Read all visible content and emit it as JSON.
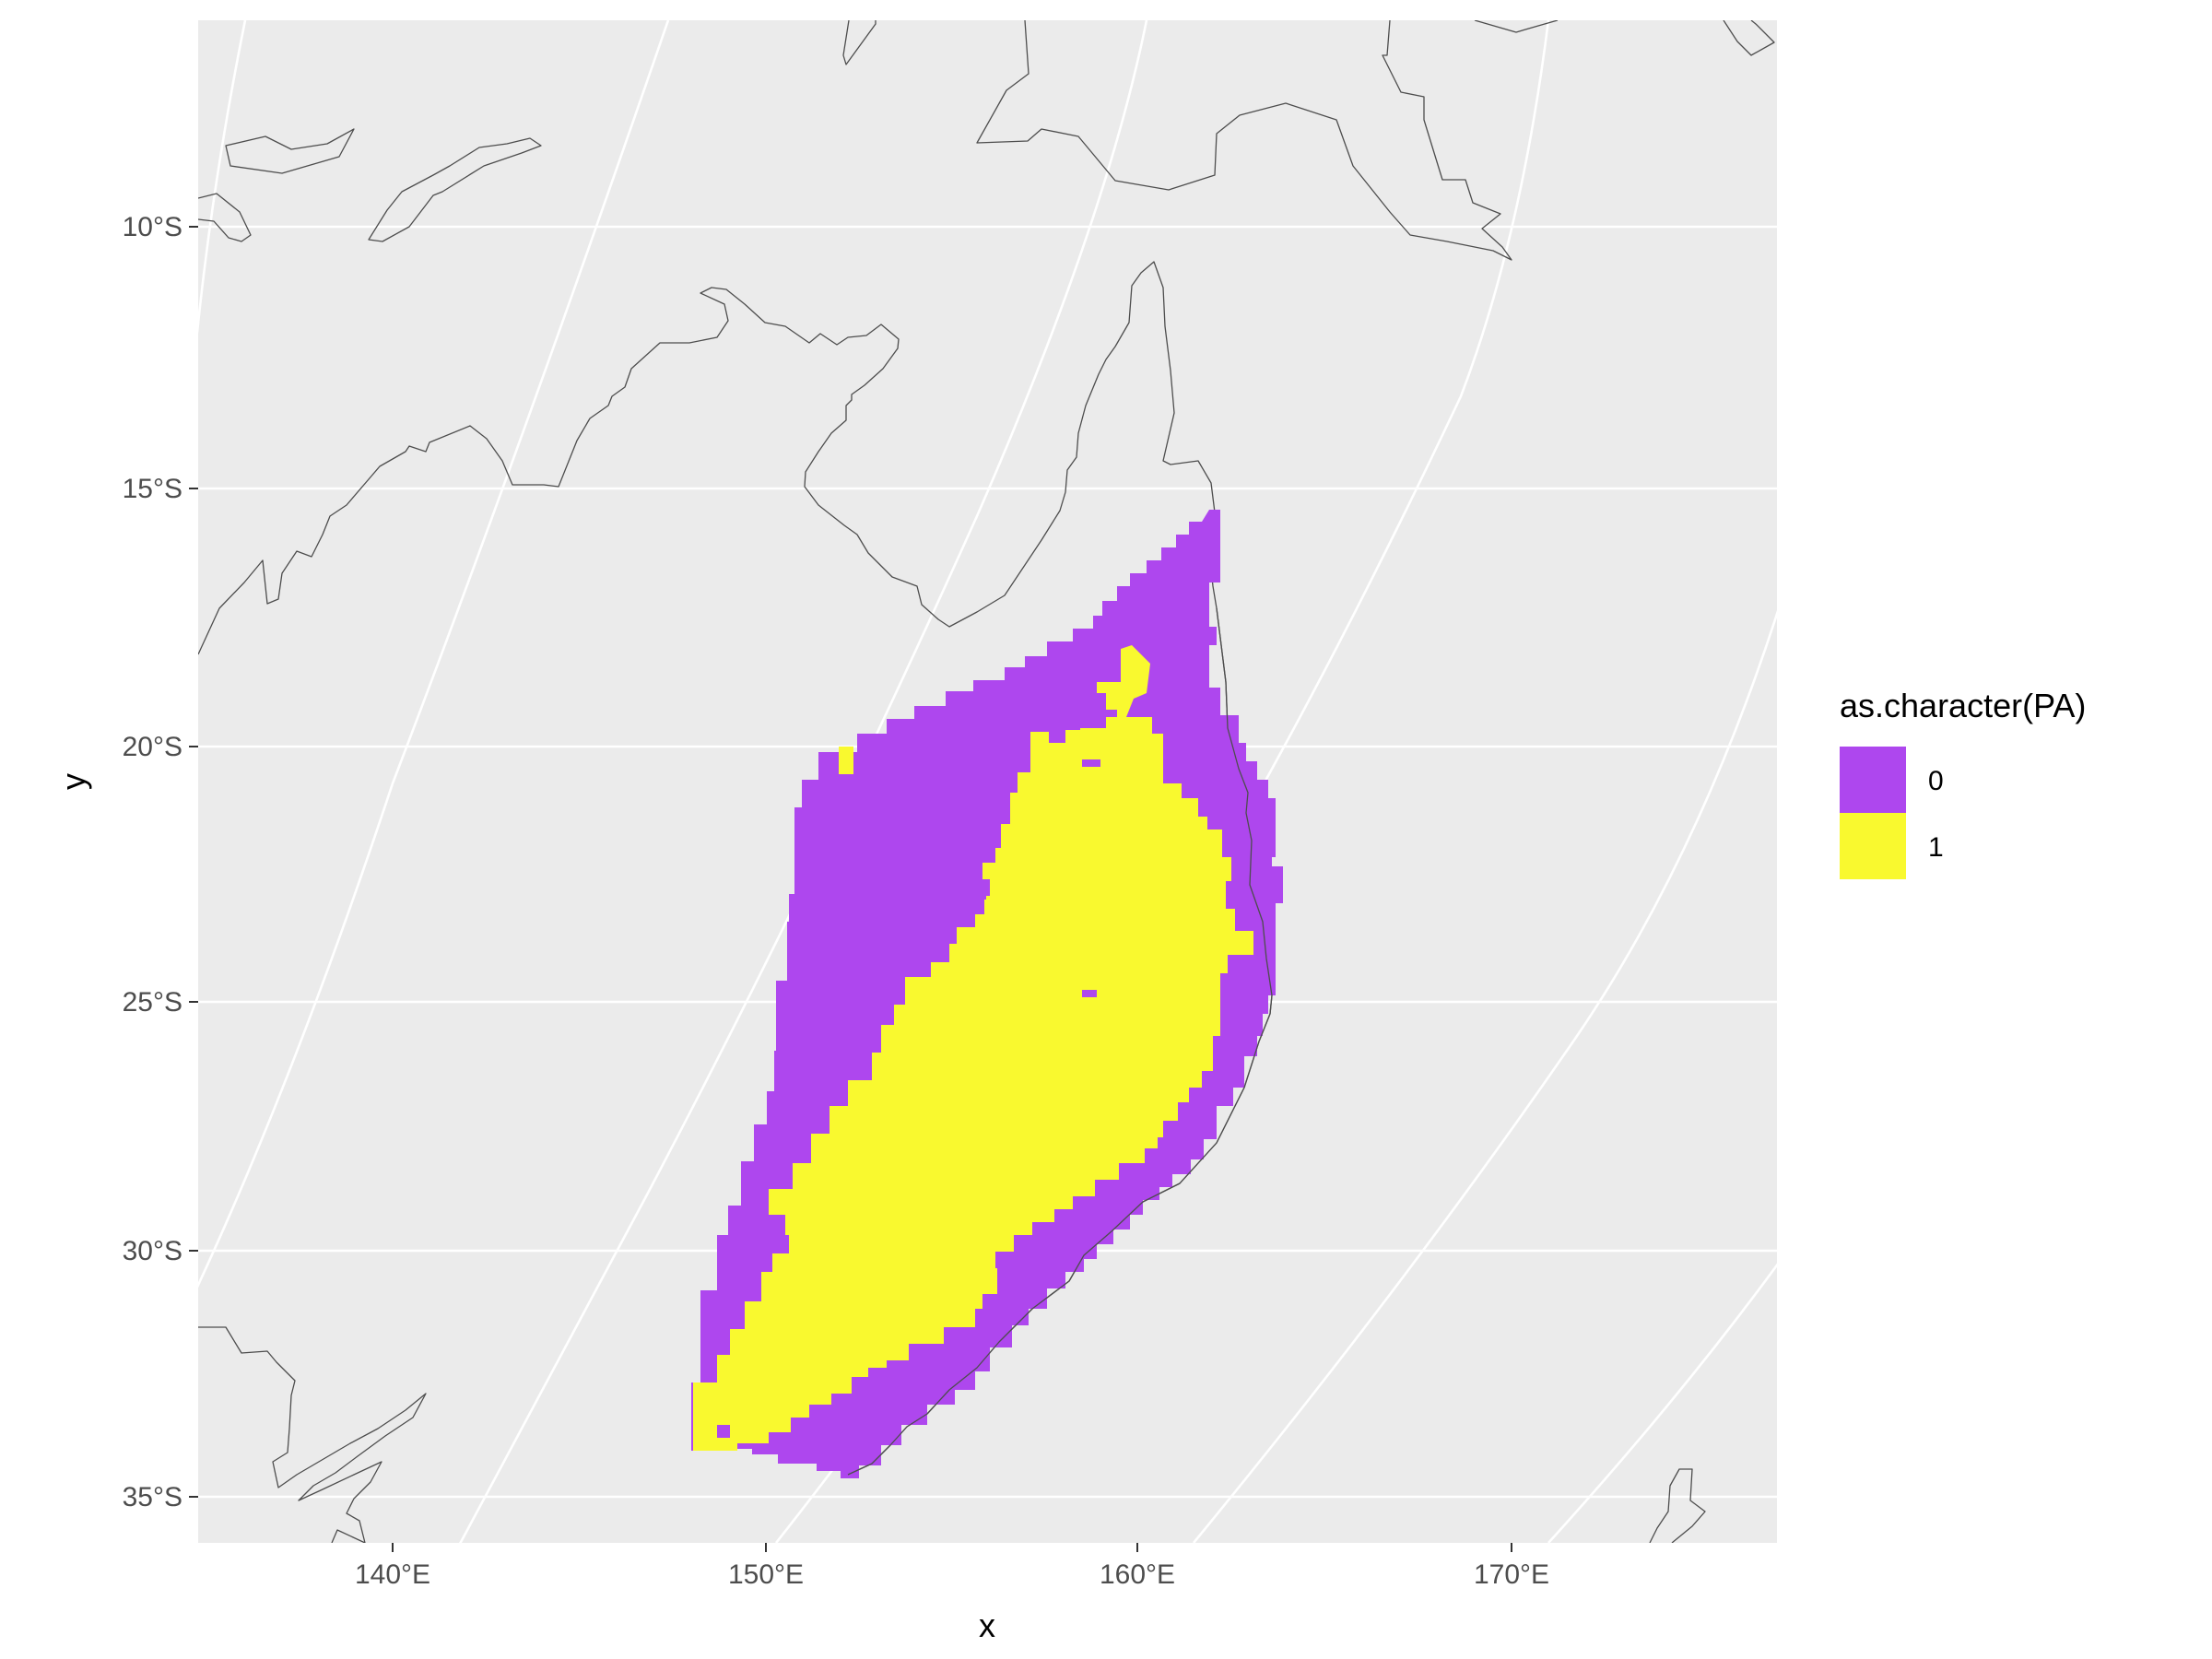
{
  "chart_data": {
    "type": "map",
    "projection": "conic (curved meridians)",
    "xlabel": "x",
    "ylabel": "y",
    "x_ticks": [
      "140°E",
      "150°E",
      "160°E",
      "170°E"
    ],
    "y_ticks": [
      "10°S",
      "15°S",
      "20°S",
      "25°S",
      "30°S",
      "35°S"
    ],
    "lon_range": [
      135,
      177
    ],
    "lat_range": [
      -36,
      -6
    ],
    "grid": true,
    "panel_background": "#ebebeb",
    "legend": {
      "title": "as.character(PA)",
      "position": "right",
      "entries": [
        {
          "label": "0",
          "color": "#ae47ee"
        },
        {
          "label": "1",
          "color": "#f9f92f"
        }
      ]
    },
    "layers": [
      {
        "name": "0",
        "description": "absence region off east Australian coast",
        "color": "#ae47ee",
        "extent": {
          "lon": [
            148,
            164
          ],
          "lat": [
            -34.5,
            -15.5
          ]
        }
      },
      {
        "name": "1",
        "description": "presence core region",
        "color": "#f9f92f",
        "extent": {
          "lon": [
            148,
            162
          ],
          "lat": [
            -34,
            -18
          ]
        }
      }
    ]
  }
}
